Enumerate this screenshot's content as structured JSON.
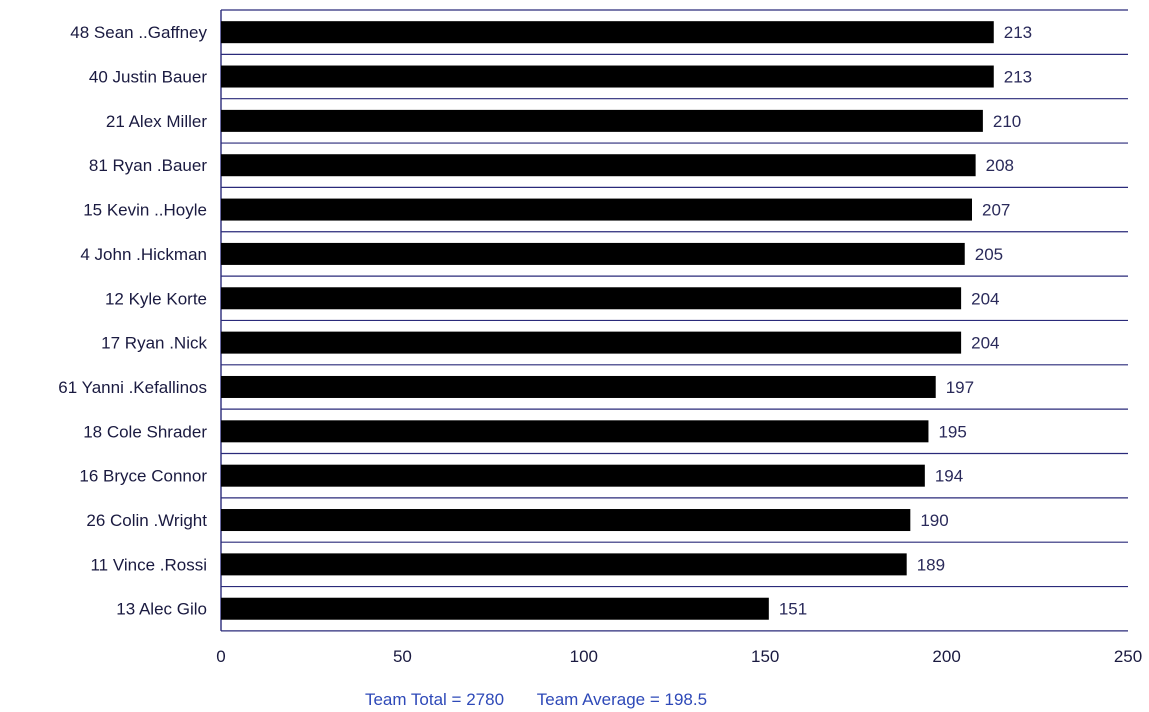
{
  "chart_data": {
    "type": "bar",
    "orientation": "horizontal",
    "categories": [
      "48 Sean ..Gaffney",
      "40 Justin Bauer",
      "21 Alex Miller",
      "81 Ryan .Bauer",
      "15 Kevin ..Hoyle",
      "4 John .Hickman",
      "12 Kyle Korte",
      "17 Ryan .Nick",
      "61 Yanni .Kefallinos",
      "18 Cole Shrader",
      "16 Bryce Connor",
      "26 Colin .Wright",
      "11 Vince .Rossi",
      "13 Alec Gilo"
    ],
    "values": [
      213,
      213,
      210,
      208,
      207,
      205,
      204,
      204,
      197,
      195,
      194,
      190,
      189,
      151
    ],
    "value_labels": [
      "213",
      "213",
      "210",
      "208",
      "207",
      "205",
      "204",
      "204",
      "197",
      "195",
      "194",
      "190",
      "189",
      "151"
    ],
    "xlim": [
      0,
      250
    ],
    "xticks": [
      0,
      50,
      100,
      150,
      200,
      250
    ],
    "xtick_labels": [
      "0",
      "50",
      "100",
      "150",
      "200",
      "250"
    ],
    "grid": "horizontal",
    "bar_color": "#000000",
    "grid_color": "#2a2a7a",
    "footer": {
      "total": "Team Total = 2780",
      "average": "Team Average = 198.5"
    }
  }
}
